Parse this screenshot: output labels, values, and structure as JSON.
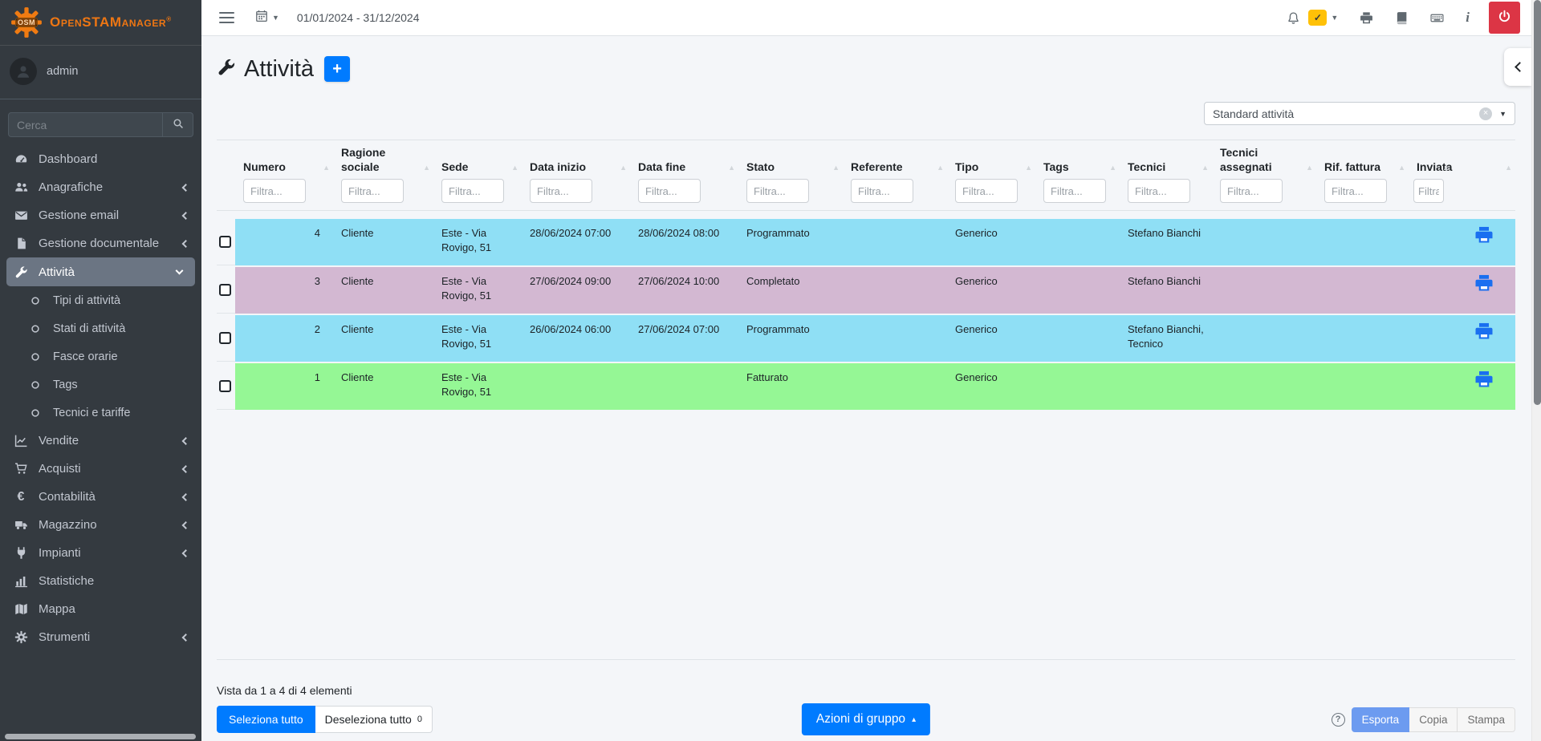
{
  "brand": {
    "name": "OpenSTAManager",
    "badge": "OSM",
    "registered": "®"
  },
  "topbar": {
    "date_range": "01/01/2024 - 31/12/2024",
    "icons": [
      "hamburger-icon",
      "calendar-icon",
      "bell-icon",
      "tasks-check-badge",
      "printer-icon",
      "book-icon",
      "keyboard-icon",
      "info-icon",
      "power-button"
    ],
    "badge_check": "✓"
  },
  "sidebar": {
    "user": "admin",
    "search_placeholder": "Cerca",
    "items": [
      {
        "id": "dashboard",
        "label": "Dashboard",
        "icon": "dashboard-icon",
        "chevron": "",
        "active": false,
        "children": []
      },
      {
        "id": "anagrafiche",
        "label": "Anagrafiche",
        "icon": "users-icon",
        "chevron": "left",
        "active": false,
        "children": []
      },
      {
        "id": "gestione-email",
        "label": "Gestione email",
        "icon": "envelope-icon",
        "chevron": "left",
        "active": false,
        "children": []
      },
      {
        "id": "gestione-documentale",
        "label": "Gestione documentale",
        "icon": "document-icon",
        "chevron": "left",
        "active": false,
        "children": []
      },
      {
        "id": "attivita",
        "label": "Attività",
        "icon": "wrench-icon",
        "chevron": "down",
        "active": true,
        "children": [
          "Tipi di attività",
          "Stati di attività",
          "Fasce orarie",
          "Tags",
          "Tecnici e tariffe"
        ]
      },
      {
        "id": "vendite",
        "label": "Vendite",
        "icon": "chart-line-icon",
        "chevron": "left",
        "active": false,
        "children": []
      },
      {
        "id": "acquisti",
        "label": "Acquisti",
        "icon": "cart-icon",
        "chevron": "left",
        "active": false,
        "children": []
      },
      {
        "id": "contabilita",
        "label": "Contabilità",
        "icon": "euro-icon",
        "chevron": "left",
        "active": false,
        "children": []
      },
      {
        "id": "magazzino",
        "label": "Magazzino",
        "icon": "truck-icon",
        "chevron": "left",
        "active": false,
        "children": []
      },
      {
        "id": "impianti",
        "label": "Impianti",
        "icon": "plug-icon",
        "chevron": "left",
        "active": false,
        "children": []
      },
      {
        "id": "statistiche",
        "label": "Statistiche",
        "icon": "bar-chart-icon",
        "chevron": "",
        "active": false,
        "children": []
      },
      {
        "id": "mappa",
        "label": "Mappa",
        "icon": "map-icon",
        "chevron": "",
        "active": false,
        "children": []
      },
      {
        "id": "strumenti",
        "label": "Strumenti",
        "icon": "tools-icon",
        "chevron": "left",
        "active": false,
        "children": []
      }
    ]
  },
  "page": {
    "title": "Attività",
    "add_button": "+",
    "template_select_value": "Standard attività"
  },
  "table": {
    "filter_placeholder": "Filtra...",
    "sort_glyph": "▲",
    "columns": [
      {
        "key": "numero",
        "label": "Numero"
      },
      {
        "key": "ragione_sociale",
        "label": "Ragione sociale"
      },
      {
        "key": "sede",
        "label": "Sede"
      },
      {
        "key": "data_inizio",
        "label": "Data inizio"
      },
      {
        "key": "data_fine",
        "label": "Data fine"
      },
      {
        "key": "stato",
        "label": "Stato"
      },
      {
        "key": "referente",
        "label": "Referente"
      },
      {
        "key": "tipo",
        "label": "Tipo"
      },
      {
        "key": "tags",
        "label": "Tags"
      },
      {
        "key": "tecnici",
        "label": "Tecnici"
      },
      {
        "key": "tecnici_assegnati",
        "label": "Tecnici assegnati"
      },
      {
        "key": "rif_fattura",
        "label": "Rif. fattura"
      },
      {
        "key": "inviata",
        "label": "Inviata"
      }
    ],
    "state_colors": {
      "programmato": "#8fdff5",
      "completato": "#d3b8d2",
      "fatturato": "#95f795"
    },
    "rows": [
      {
        "numero": "4",
        "ragione_sociale": "Cliente",
        "sede": "Este - Via Rovigo, 51",
        "data_inizio": "28/06/2024 07:00",
        "data_fine": "28/06/2024 08:00",
        "stato": "Programmato",
        "referente": "",
        "tipo": "Generico",
        "tags": "",
        "tecnici": "Stefano Bianchi",
        "tecnici_assegnati": "",
        "rif_fattura": "",
        "inviata": ""
      },
      {
        "numero": "3",
        "ragione_sociale": "Cliente",
        "sede": "Este - Via Rovigo, 51",
        "data_inizio": "27/06/2024 09:00",
        "data_fine": "27/06/2024 10:00",
        "stato": "Completato",
        "referente": "",
        "tipo": "Generico",
        "tags": "",
        "tecnici": "Stefano Bianchi",
        "tecnici_assegnati": "",
        "rif_fattura": "",
        "inviata": ""
      },
      {
        "numero": "2",
        "ragione_sociale": "Cliente",
        "sede": "Este - Via Rovigo, 51",
        "data_inizio": "26/06/2024 06:00",
        "data_fine": "27/06/2024 07:00",
        "stato": "Programmato",
        "referente": "",
        "tipo": "Generico",
        "tags": "",
        "tecnici": "Stefano Bianchi, Tecnico",
        "tecnici_assegnati": "",
        "rif_fattura": "",
        "inviata": ""
      },
      {
        "numero": "1",
        "ragione_sociale": "Cliente",
        "sede": "Este - Via Rovigo, 51",
        "data_inizio": "",
        "data_fine": "",
        "stato": "Fatturato",
        "referente": "",
        "tipo": "Generico",
        "tags": "",
        "tecnici": "",
        "tecnici_assegnati": "",
        "rif_fattura": "",
        "inviata": ""
      }
    ]
  },
  "footer": {
    "info": "Vista da 1 a 4 di 4 elementi",
    "select_all": "Seleziona tutto",
    "deselect_all": "Deseleziona tutto",
    "deselect_count": "0",
    "group_actions": "Azioni di gruppo",
    "group_actions_caret": "▴",
    "help_icon": "?",
    "export_label": "Esporta",
    "copy_label": "Copia",
    "print_label": "Stampa"
  }
}
